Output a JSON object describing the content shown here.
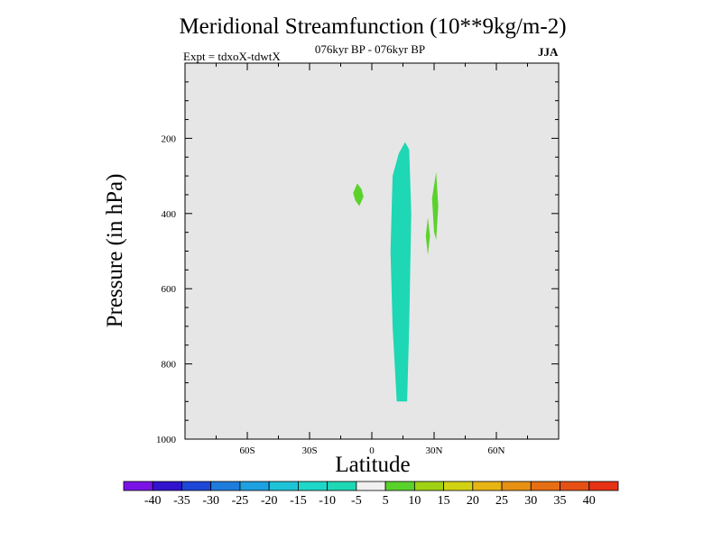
{
  "header": {
    "title": "Meridional Streamfunction (10**9kg/m-2)",
    "subtitle": "076kyr BP - 076kyr BP",
    "expt": "Expt = tdxoX-tdwtX",
    "season": "JJA"
  },
  "chart_data": {
    "type": "contour",
    "title": "Meridional Streamfunction (10**9kg/m-2)",
    "subtitle": "076kyr BP - 076kyr BP",
    "xlabel": "Latitude",
    "ylabel": "Pressure (in hPa)",
    "xlim": [
      -90,
      90
    ],
    "ylim": [
      1000,
      0
    ],
    "x_ticks": [
      {
        "value": -60,
        "label": "60S"
      },
      {
        "value": -30,
        "label": "30S"
      },
      {
        "value": 0,
        "label": "0"
      },
      {
        "value": 30,
        "label": "30N"
      },
      {
        "value": 60,
        "label": "60N"
      }
    ],
    "y_ticks": [
      {
        "value": 200,
        "label": "200"
      },
      {
        "value": 400,
        "label": "400"
      },
      {
        "value": 600,
        "label": "600"
      },
      {
        "value": 800,
        "label": "800"
      },
      {
        "value": 1000,
        "label": "1000"
      }
    ],
    "background_color": "#e6e6e6",
    "filled_regions": [
      {
        "range": [
          -10,
          -5
        ],
        "color": "#1ed7b4",
        "outline": [
          [
            12,
            900
          ],
          [
            10,
            700
          ],
          [
            9,
            500
          ],
          [
            10,
            300
          ],
          [
            13,
            240
          ],
          [
            16,
            210
          ],
          [
            18,
            230
          ],
          [
            19,
            400
          ],
          [
            18,
            700
          ],
          [
            17,
            900
          ]
        ]
      },
      {
        "range": [
          5,
          10
        ],
        "color": "#5ad22c",
        "outline": [
          [
            -7,
            320
          ],
          [
            -5,
            335
          ],
          [
            -4,
            355
          ],
          [
            -6,
            380
          ],
          [
            -8,
            365
          ],
          [
            -9,
            345
          ]
        ]
      },
      {
        "range": [
          5,
          10
        ],
        "color": "#5ad22c",
        "outline": [
          [
            31,
            290
          ],
          [
            32,
            380
          ],
          [
            31,
            470
          ],
          [
            30,
            450
          ],
          [
            29,
            360
          ]
        ]
      },
      {
        "range": [
          5,
          10
        ],
        "color": "#5ad22c",
        "outline": [
          [
            27,
            410
          ],
          [
            28,
            460
          ],
          [
            27,
            510
          ],
          [
            26,
            460
          ]
        ]
      }
    ],
    "colorbar": {
      "labels": [
        "-40",
        "-35",
        "-30",
        "-25",
        "-20",
        "-15",
        "-10",
        "-5",
        "5",
        "10",
        "15",
        "20",
        "25",
        "30",
        "35",
        "40"
      ],
      "colors": [
        "#7a14e6",
        "#3214cd",
        "#1e46d7",
        "#1e7ddc",
        "#1ea0e1",
        "#1ec3d7",
        "#1ed7c8",
        "#1ed7b4",
        "#f0f0f0",
        "#5ad22c",
        "#a0d214",
        "#d2d214",
        "#e6b414",
        "#e69114",
        "#e66e14",
        "#e65014",
        "#e63214"
      ]
    }
  }
}
